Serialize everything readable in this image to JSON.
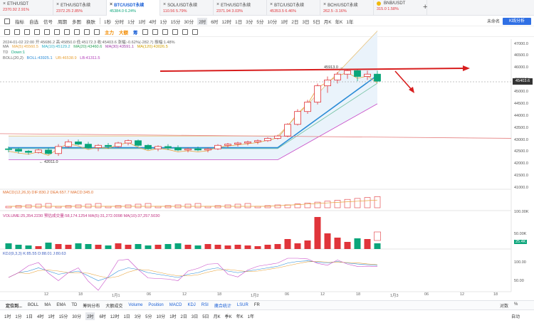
{
  "tabs": [
    {
      "name": "ETH/USDT",
      "sub": "2370.92  2.91%",
      "up": false,
      "active": false
    },
    {
      "name": "ETH/USDT永续",
      "sub": "2372.25  2.85%",
      "up": false,
      "active": false
    },
    {
      "name": "BTC/USDT永续",
      "sub": "45384.0  6.24%",
      "up": true,
      "active": true
    },
    {
      "name": "SOL/USDT永续",
      "sub": "110.56  5.79%",
      "up": false,
      "active": false
    },
    {
      "name": "ETH/USDT永续",
      "sub": "2371.94  3.03%",
      "up": false,
      "active": false
    },
    {
      "name": "BTC/USDT永续",
      "sub": "45353.5  6.46%",
      "up": false,
      "active": false
    },
    {
      "name": "BCH/USDT永续",
      "sub": "262.5  -3.16%",
      "up": false,
      "active": false
    },
    {
      "name": "BNB/USDT",
      "sub": "315.0  1.58%",
      "up": false,
      "active": false
    }
  ],
  "toolbar1": {
    "items": [
      "指标",
      "自选",
      "信号",
      "周期",
      "多图",
      "换肤"
    ],
    "periods": [
      "1秒",
      "分时",
      "1分",
      "1时",
      "4时",
      "1分",
      "15分",
      "30分",
      "2时",
      "6时",
      "12时",
      "1日",
      "3分",
      "5分",
      "10分",
      "1时",
      "2日",
      "3日",
      "5日",
      "月K",
      "年K",
      "1年"
    ],
    "selected_period": "2时",
    "currency": "未命名",
    "k_analysis": "K线分析"
  },
  "toolbar2": {
    "orange_labels": [
      "主力",
      "大额"
    ],
    "blue_label": "筹"
  },
  "legend": {
    "line1": "2024-01-02 22:00  开:45686.2  高:45850.0  低:45172.3  收:45403.6  涨幅:-0.62%(-282.7)  振幅:1.48%",
    "ma_title": "MA",
    "ma5": "MA(5):45560.5",
    "ma10": "MA(10):45129.2",
    "ma20": "MA(20):43460.6",
    "ma30": "MA(30):43591.1",
    "ma120": "MA(120):43026.5",
    "td_title": "TD",
    "td_value": "Down:1",
    "boll_title": "BOLL(20,2)",
    "boll_mid": "BOLL:43925.1",
    "boll_up": "UB:46538.9",
    "boll_dn": "LB:41311.5",
    "macd": "MACD(12,26,9)   DIF:830.2   DEA:657.7   MACD:345.0",
    "volume": "VOLUME:25,354.2230   预估成交量:58,174.1254   MA(5):31,272.0098   MA(10):37,257.5030",
    "kdj": "KDJ(9,3,3)   K:85.55   D:88.01   J:80.63"
  },
  "price": {
    "current": "45403.6",
    "low_mark": "42011.0",
    "high_mark": "45913.0",
    "axis": [
      "47000.0",
      "46500.0",
      "46000.0",
      "45500.0",
      "45000.0",
      "44500.0",
      "44000.0",
      "43500.0",
      "43000.0",
      "42500.0",
      "42000.0",
      "41500.0",
      "41000.0"
    ],
    "vol_axis": [
      "100.00K",
      "50.00K",
      "25.4K"
    ],
    "kdj_axis": [
      "100.00",
      "50.00"
    ]
  },
  "x_labels": [
    "12",
    "18",
    "1月1",
    "06",
    "12",
    "18",
    "1月2",
    "06",
    "12",
    "18",
    "1月3",
    "06",
    "12",
    "18"
  ],
  "bottom": {
    "row1": [
      "定位到...",
      "BOLL",
      "MA",
      "EMA",
      "TD",
      "筹码分布",
      "大额成交",
      "Volume",
      "Position",
      "MACD",
      "KDJ",
      "RSI",
      "擒合统计",
      "LSUR",
      "FR"
    ],
    "row1_right": [
      "对数",
      "%"
    ],
    "row2": [
      "1时",
      "1分",
      "1日",
      "4时",
      "1时",
      "15分",
      "30分",
      "2时",
      "6时",
      "12时",
      "1日",
      "3分",
      "5分",
      "10分",
      "1时",
      "2日",
      "3日",
      "5日",
      "月K",
      "季K",
      "年K",
      "1年"
    ],
    "row2_right": "自动",
    "selected": "2时"
  },
  "chart_data": {
    "type": "candlestick",
    "ylim": [
      40800,
      47200
    ],
    "candles": [
      [
        42500,
        42600,
        42350,
        42480
      ],
      [
        42480,
        42550,
        42300,
        42400
      ],
      [
        42400,
        42450,
        42250,
        42350
      ],
      [
        42350,
        42500,
        42300,
        42450
      ],
      [
        42450,
        42550,
        42250,
        42300
      ],
      [
        42300,
        42700,
        42200,
        42600
      ],
      [
        42600,
        42900,
        42550,
        42800
      ],
      [
        42800,
        42900,
        42650,
        42700
      ],
      [
        42700,
        42800,
        42500,
        42550
      ],
      [
        42550,
        42700,
        42400,
        42650
      ],
      [
        42650,
        42750,
        42500,
        42600
      ],
      [
        42600,
        42800,
        42550,
        42750
      ],
      [
        42750,
        42900,
        42650,
        42850
      ],
      [
        42850,
        42900,
        42600,
        42650
      ],
      [
        42650,
        42700,
        42450,
        42500
      ],
      [
        42500,
        42650,
        42400,
        42600
      ],
      [
        42600,
        42700,
        42450,
        42550
      ],
      [
        42550,
        42650,
        42400,
        42450
      ],
      [
        42450,
        42550,
        42350,
        42500
      ],
      [
        42500,
        42600,
        42400,
        42450
      ],
      [
        42450,
        42550,
        42350,
        42500
      ],
      [
        42500,
        42700,
        42450,
        42650
      ],
      [
        42650,
        42750,
        42550,
        42700
      ],
      [
        42700,
        42800,
        42600,
        42750
      ],
      [
        42750,
        42850,
        42650,
        42800
      ],
      [
        42800,
        42900,
        42700,
        42850
      ],
      [
        42850,
        43000,
        42800,
        42950
      ],
      [
        42950,
        43100,
        42900,
        43050
      ],
      [
        43050,
        43600,
        43000,
        43550
      ],
      [
        43550,
        44200,
        43500,
        44100
      ],
      [
        44100,
        44600,
        44000,
        44500
      ],
      [
        44500,
        45300,
        44400,
        45200
      ],
      [
        45200,
        45600,
        44900,
        45450
      ],
      [
        45450,
        45800,
        45300,
        45700
      ],
      [
        45700,
        45913,
        45500,
        45850
      ],
      [
        45850,
        45900,
        45400,
        45600
      ],
      [
        45600,
        45850,
        45450,
        45700
      ],
      [
        45700,
        45850,
        45350,
        45400
      ]
    ]
  }
}
